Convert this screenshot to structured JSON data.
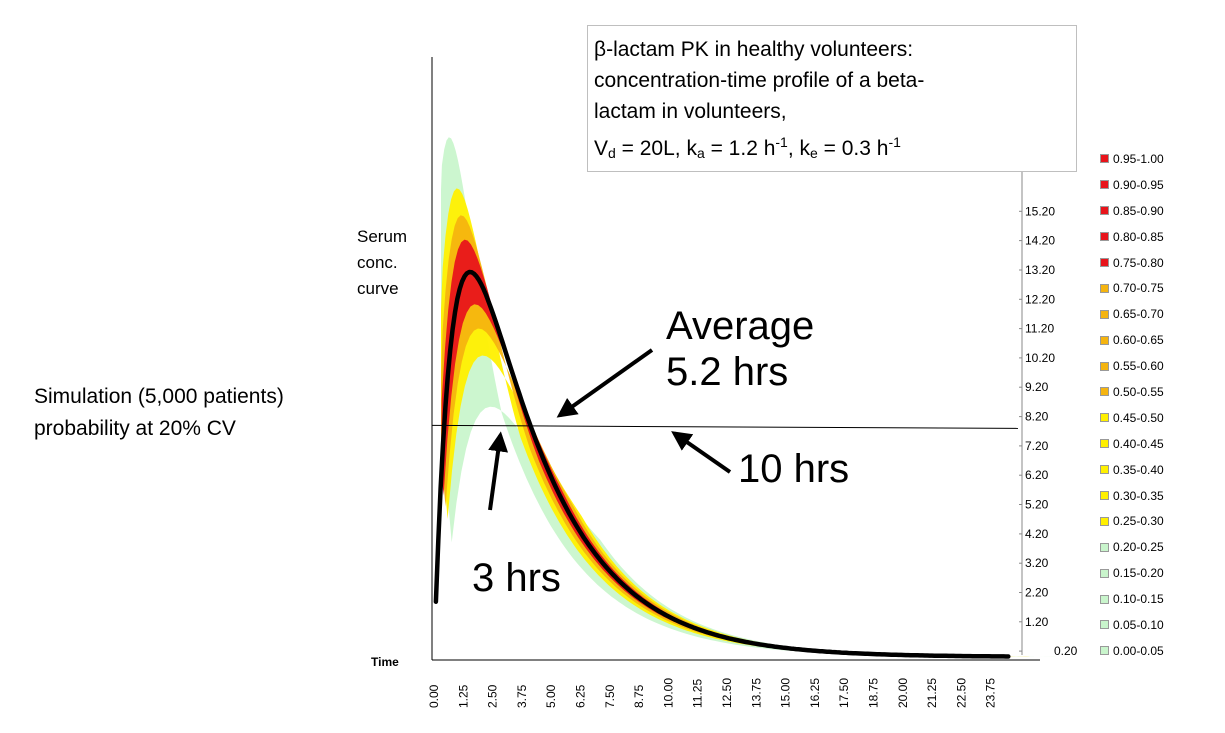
{
  "title_lines": [
    "β-lactam PK in healthy volunteers:",
    "concentration-time profile of a beta-",
    "lactam in volunteers,"
  ],
  "params": {
    "vd_main": "V",
    "vd_sub": "d",
    "vd_val": " = 20L, k",
    "ka_sub": "a",
    "ka_val": " = 1.2 h",
    "ka_sup": "-1",
    "ke_pre": ", k",
    "ke_sub": "e",
    "ke_val": " = 0.3 h",
    "ke_sup": "-1"
  },
  "labels": {
    "serum": [
      "Serum",
      "conc.",
      "curve"
    ],
    "simulation": [
      "Simulation (5,000 patients)",
      "probability at 20% CV"
    ],
    "average": [
      "Average",
      "5.2 hrs"
    ],
    "ten_hrs": "10 hrs",
    "three_hrs": "3 hrs",
    "time": "Time"
  },
  "legend": [
    {
      "label": "0.95-1.00",
      "color": "#e8141b"
    },
    {
      "label": "0.90-0.95",
      "color": "#e8141b"
    },
    {
      "label": "0.85-0.90",
      "color": "#e8141b"
    },
    {
      "label": "0.80-0.85",
      "color": "#e8141b"
    },
    {
      "label": "0.75-0.80",
      "color": "#e8141b"
    },
    {
      "label": "0.70-0.75",
      "color": "#f5b40f"
    },
    {
      "label": "0.65-0.70",
      "color": "#f5b40f"
    },
    {
      "label": "0.60-0.65",
      "color": "#f5b40f"
    },
    {
      "label": "0.55-0.60",
      "color": "#f5b40f"
    },
    {
      "label": "0.50-0.55",
      "color": "#f5b40f"
    },
    {
      "label": "0.45-0.50",
      "color": "#fff000"
    },
    {
      "label": "0.40-0.45",
      "color": "#fff000"
    },
    {
      "label": "0.35-0.40",
      "color": "#fff000"
    },
    {
      "label": "0.30-0.35",
      "color": "#fff000"
    },
    {
      "label": "0.25-0.30",
      "color": "#fff000"
    },
    {
      "label": "0.20-0.25",
      "color": "#c9f5cc"
    },
    {
      "label": "0.15-0.20",
      "color": "#c9f5cc"
    },
    {
      "label": "0.10-0.15",
      "color": "#c9f5cc"
    },
    {
      "label": "0.05-0.10",
      "color": "#c9f5cc"
    },
    {
      "label": "0.00-0.05",
      "color": "#c9f5cc"
    }
  ],
  "chart_data": {
    "type": "heatmap",
    "x_ticks": [
      "0.00",
      "1.25",
      "2.50",
      "3.75",
      "5.00",
      "6.25",
      "7.50",
      "8.75",
      "10.00",
      "11.25",
      "12.50",
      "13.75",
      "15.00",
      "16.25",
      "17.50",
      "18.75",
      "20.00",
      "21.25",
      "22.50",
      "23.75"
    ],
    "y_ticks": [
      "0.20",
      "1.20",
      "2.20",
      "3.20",
      "4.20",
      "5.20",
      "6.20",
      "7.20",
      "8.20",
      "9.20",
      "10.20",
      "11.20",
      "12.20",
      "13.20",
      "14.20",
      "15.20"
    ],
    "xlim": [
      0,
      25
    ],
    "ylim": [
      0,
      16.2
    ],
    "threshold": 7.9,
    "model": {
      "dose_factor": 27.8,
      "ka": 1.2,
      "ke": 0.3
    },
    "bands": [
      {
        "prob": "0.00-0.05",
        "color": "#c9f5cc",
        "width": 1.0
      },
      {
        "prob": "0.25-0.30",
        "color": "#fff000",
        "width": 0.62
      },
      {
        "prob": "0.50-0.55",
        "color": "#f5b40f",
        "width": 0.42
      },
      {
        "prob": "0.75-0.80",
        "color": "#e8141b",
        "width": 0.24
      }
    ],
    "annotation_times": {
      "three_hrs": 3,
      "average": 5.2,
      "ten_hrs": 10
    }
  }
}
